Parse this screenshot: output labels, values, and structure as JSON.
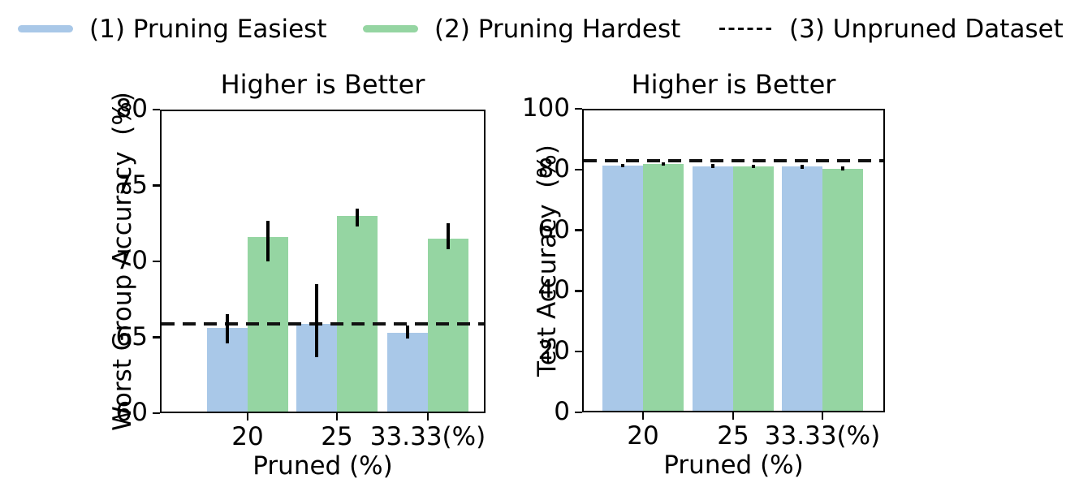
{
  "legend": {
    "items": [
      {
        "label": "(1) Pruning Easiest",
        "color": "#a9c8e8",
        "swatch": "solid-line"
      },
      {
        "label": "(2) Pruning Hardest",
        "color": "#95d5a2",
        "swatch": "solid-line"
      },
      {
        "label": "(3) Unpruned Dataset",
        "color": "#111111",
        "swatch": "dashed-line"
      }
    ]
  },
  "chart_data": [
    {
      "type": "bar",
      "title": "Higher is Better",
      "ylabel": "Worst Group Accuracy  (%)",
      "xlabel": "Pruned (%)",
      "categories": [
        "20",
        "25",
        "33.33(%)"
      ],
      "ylim": [
        60,
        80
      ],
      "yticks": [
        60,
        65,
        70,
        75,
        80
      ],
      "grid": false,
      "series": [
        {
          "name": "(1) Pruning Easiest",
          "color": "#a9c8e8",
          "values": [
            65.6,
            65.9,
            65.3
          ],
          "error_low": [
            64.6,
            63.7,
            64.9
          ],
          "error_high": [
            66.5,
            68.5,
            65.8
          ]
        },
        {
          "name": "(2) Pruning Hardest",
          "color": "#95d5a2",
          "values": [
            71.6,
            73.0,
            71.5
          ],
          "error_low": [
            70.0,
            72.3,
            70.8
          ],
          "error_high": [
            72.7,
            73.5,
            72.5
          ]
        }
      ],
      "reference_line": {
        "name": "(3) Unpruned Dataset",
        "value": 65.9,
        "style": "dashed"
      }
    },
    {
      "type": "bar",
      "title": "Higher is Better",
      "ylabel": "Test Accuracy  (%)",
      "xlabel": "Pruned (%)",
      "categories": [
        "20",
        "25",
        "33.33(%)"
      ],
      "ylim": [
        0,
        100
      ],
      "yticks": [
        0,
        20,
        40,
        60,
        80,
        100
      ],
      "grid": false,
      "series": [
        {
          "name": "(1) Pruning Easiest",
          "color": "#a9c8e8",
          "values": [
            81.3,
            81.1,
            80.9
          ],
          "error_low": [
            80.7,
            80.5,
            80.2
          ],
          "error_high": [
            81.9,
            81.8,
            81.6
          ]
        },
        {
          "name": "(2) Pruning Hardest",
          "color": "#95d5a2",
          "values": [
            81.7,
            81.1,
            80.3
          ],
          "error_low": [
            81.2,
            80.6,
            79.8
          ],
          "error_high": [
            82.3,
            81.6,
            80.9
          ]
        }
      ],
      "reference_line": {
        "name": "(3) Unpruned Dataset",
        "value": 82.9,
        "style": "dashed"
      }
    }
  ]
}
